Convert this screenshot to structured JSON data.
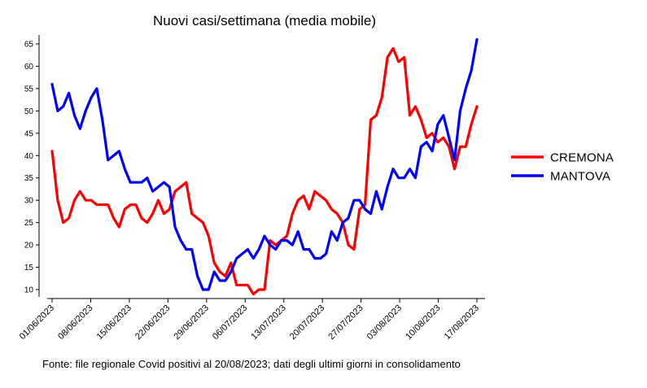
{
  "chart_data": {
    "type": "line",
    "title": "Nuovi casi/settimana (media mobile)",
    "xlabel": "",
    "ylabel": "",
    "ylim": [
      8,
      67
    ],
    "yticks": [
      10,
      15,
      20,
      25,
      30,
      35,
      40,
      45,
      50,
      55,
      60,
      65
    ],
    "xtick_labels": [
      "01/06/2023",
      "08/06/2023",
      "15/06/2023",
      "22/06/2023",
      "29/06/2023",
      "06/07/2023",
      "13/07/2023",
      "20/07/2023",
      "27/07/2023",
      "03/08/2023",
      "10/08/2023",
      "17/08/2023"
    ],
    "x_start_date": "2023-06-01",
    "x_end_date": "2023-08-17",
    "grid": false,
    "legend_position": "right",
    "series": [
      {
        "name": "CREMONA",
        "color": "#ff0000",
        "values": [
          41,
          30,
          25,
          26,
          30,
          32,
          30,
          30,
          29,
          29,
          29,
          26,
          24,
          28,
          29,
          29,
          26,
          25,
          27,
          30,
          27,
          28,
          32,
          33,
          34,
          27,
          26,
          25,
          22,
          16,
          14,
          13,
          16,
          11,
          11,
          11,
          9,
          10,
          10,
          21,
          20,
          21,
          22,
          27,
          30,
          31,
          28,
          32,
          31,
          30,
          28,
          27,
          25,
          20,
          19,
          28,
          29,
          48,
          49,
          53,
          62,
          64,
          61,
          62,
          49,
          51,
          48,
          44,
          45,
          43,
          44,
          42,
          37,
          42,
          42,
          47,
          51
        ]
      },
      {
        "name": "MANTOVA",
        "color": "#0000ff",
        "values": [
          56,
          50,
          51,
          54,
          49,
          46,
          50,
          53,
          55,
          48,
          39,
          40,
          41,
          37,
          34,
          34,
          34,
          35,
          32,
          33,
          34,
          33,
          24,
          21,
          19,
          19,
          13,
          10,
          10,
          14,
          12,
          12,
          14,
          17,
          18,
          19,
          17,
          19,
          22,
          20,
          19,
          21,
          21,
          20,
          23,
          19,
          19,
          17,
          17,
          18,
          23,
          21,
          25,
          26,
          30,
          30,
          28,
          27,
          32,
          28,
          33,
          37,
          35,
          35,
          37,
          35,
          42,
          43,
          41,
          47,
          49,
          44,
          39,
          50,
          55,
          59,
          66
        ]
      }
    ]
  },
  "footer": "Fonte: file regionale Covid positivi al 20/08/2023; dati degli ultimi giorni in consolidamento"
}
